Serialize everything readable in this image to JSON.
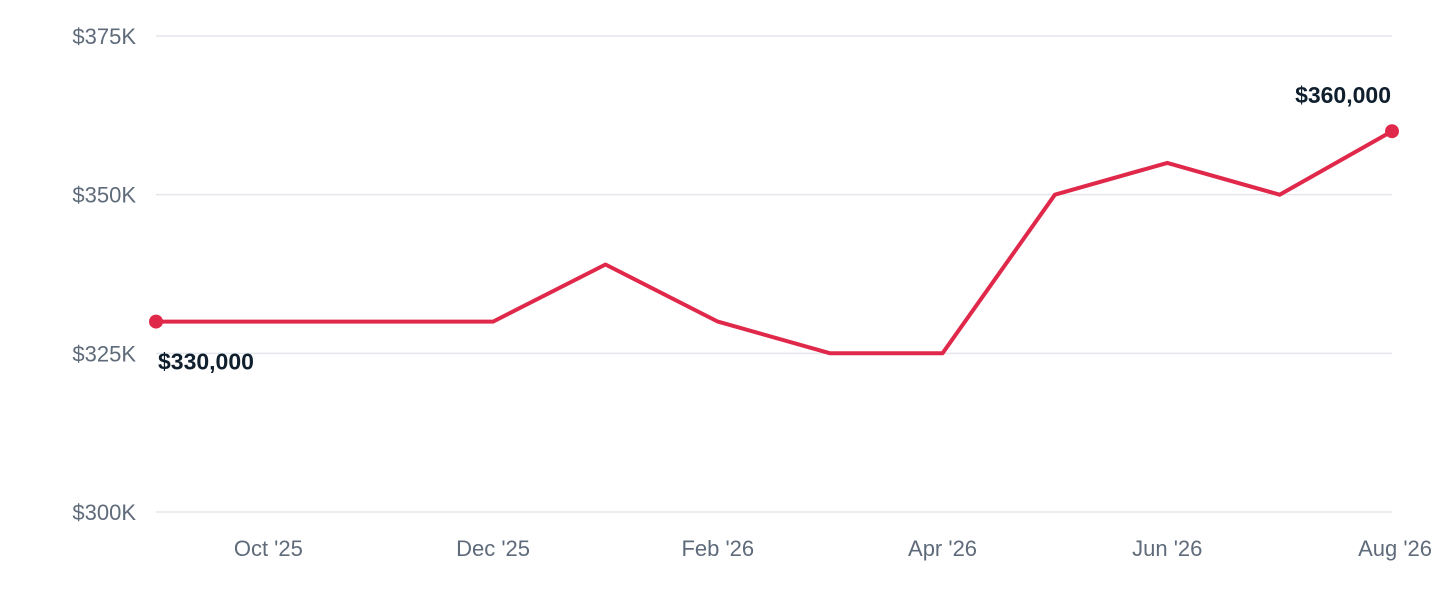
{
  "chart_data": {
    "type": "line",
    "x": [
      "2025-09",
      "2025-10",
      "2025-11",
      "2025-12",
      "2026-01",
      "2026-02",
      "2026-03",
      "2026-04",
      "2026-05",
      "2026-06",
      "2026-07",
      "2026-08"
    ],
    "x_tick_labels": [
      {
        "x": "2025-10",
        "label": "Oct '25"
      },
      {
        "x": "2025-12",
        "label": "Dec '25"
      },
      {
        "x": "2026-02",
        "label": "Feb '26"
      },
      {
        "x": "2026-04",
        "label": "Apr '26"
      },
      {
        "x": "2026-06",
        "label": "Jun '26"
      },
      {
        "x": "2026-08",
        "label": "Aug '26"
      }
    ],
    "y_ticks": [
      {
        "value": 300000,
        "label": "$300K"
      },
      {
        "value": 325000,
        "label": "$325K"
      },
      {
        "value": 350000,
        "label": "$350K"
      },
      {
        "value": 375000,
        "label": "$375K"
      }
    ],
    "ylim": [
      300000,
      375000
    ],
    "grid": true,
    "series": [
      {
        "color": "#e0294a",
        "values": [
          330000,
          330000,
          330000,
          330000,
          339000,
          330000,
          325000,
          325000,
          350000,
          355000,
          350000,
          360000
        ]
      }
    ],
    "annotations": [
      {
        "x": "2025-09",
        "value": 330000,
        "text": "$330,000",
        "position": "below-right"
      },
      {
        "x": "2026-08",
        "value": 360000,
        "text": "$360,000",
        "position": "above-left"
      }
    ],
    "title": "",
    "xlabel": "",
    "ylabel": ""
  }
}
